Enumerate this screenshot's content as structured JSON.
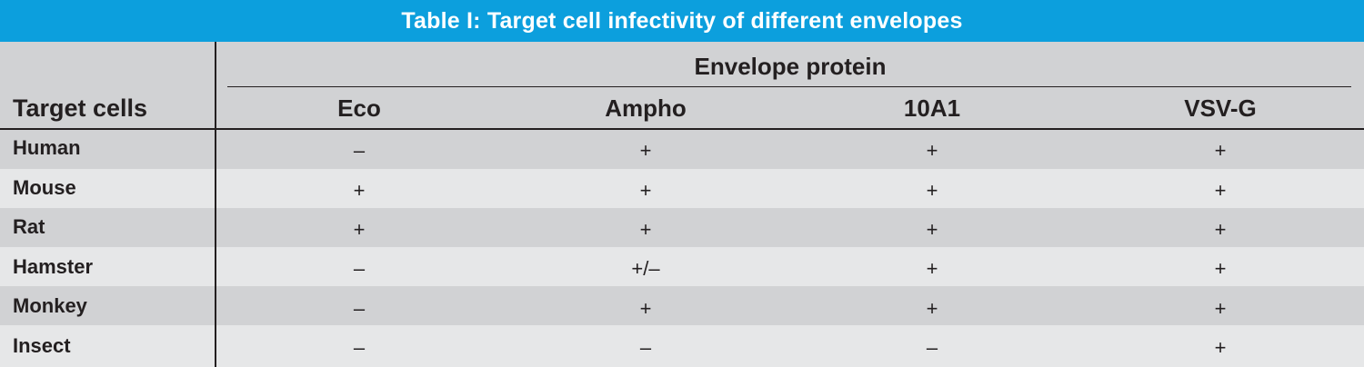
{
  "title": "Table I: Target cell infectivity of different envelopes",
  "header": {
    "row_header": "Target cells",
    "group_header": "Envelope protein",
    "columns": [
      "Eco",
      "Ampho",
      "10A1",
      "VSV-G"
    ]
  },
  "rows": [
    {
      "label": "Human",
      "values": [
        "–",
        "+",
        "+",
        "+"
      ]
    },
    {
      "label": "Mouse",
      "values": [
        "+",
        "+",
        "+",
        "+"
      ]
    },
    {
      "label": "Rat",
      "values": [
        "+",
        "+",
        "+",
        "+"
      ]
    },
    {
      "label": "Hamster",
      "values": [
        "–",
        "+/–",
        "+",
        "+"
      ]
    },
    {
      "label": "Monkey",
      "values": [
        "–",
        "+",
        "+",
        "+"
      ]
    },
    {
      "label": "Insect",
      "values": [
        "–",
        "–",
        "–",
        "+"
      ]
    }
  ],
  "colors": {
    "title_bg": "#0c9fdd",
    "title_text": "#ffffff",
    "row_dark": "#d1d2d4",
    "row_light": "#e6e7e8",
    "rule": "#231f20"
  }
}
